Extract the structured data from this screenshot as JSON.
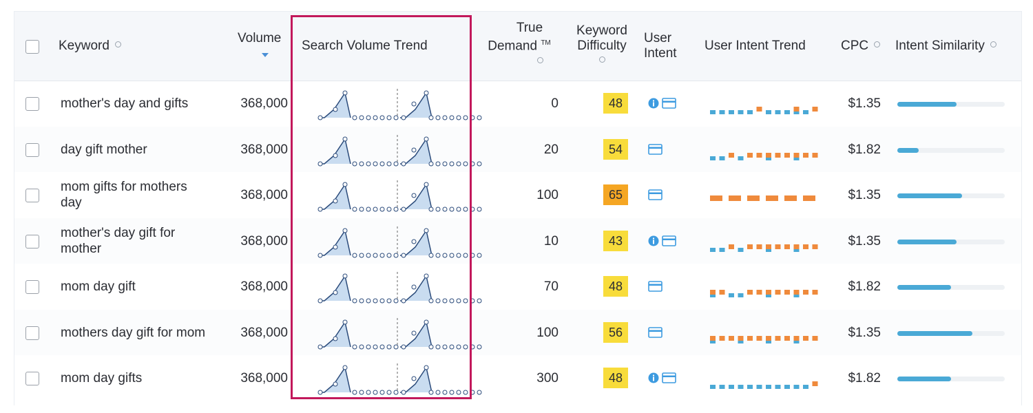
{
  "header": {
    "keyword": "Keyword",
    "volume": "Volume",
    "search_volume_trend": "Search Volume Trend",
    "true_demand_line1": "True",
    "true_demand_line2": "Demand",
    "true_demand_tm": "TM",
    "keyword_difficulty_line1": "Keyword",
    "keyword_difficulty_line2": "Difficulty",
    "user_intent_line1": "User",
    "user_intent_line2": "Intent",
    "user_intent_trend": "User Intent Trend",
    "cpc": "CPC",
    "intent_similarity": "Intent Similarity"
  },
  "colors": {
    "kd_yellow": "#f8dc3b",
    "kd_orange": "#f5a623",
    "intent_blue": "#4aa9d6",
    "intent_orange": "#ef8a3c",
    "highlight": "#c2185b"
  },
  "rows": [
    {
      "keyword_line1": "mother's day and gifts",
      "keyword_line2": "",
      "volume": "368,000",
      "true_demand": "0",
      "kd": "48",
      "kd_level": "yellow",
      "intents": [
        "info",
        "commercial"
      ],
      "trend": "BBBBBOBBBOBO",
      "cpc": "$1.35",
      "similarity": 0.55
    },
    {
      "keyword_line1": "day gift mother",
      "keyword_line2": "",
      "volume": "368,000",
      "true_demand": "20",
      "kd": "54",
      "kd_level": "yellow",
      "intents": [
        "commercial"
      ],
      "trend": "BBOBOOOOOOOO",
      "cpc": "$1.82",
      "similarity": 0.2
    },
    {
      "keyword_line1": "mom gifts for mothers",
      "keyword_line2": "day",
      "volume": "368,000",
      "true_demand": "100",
      "kd": "65",
      "kd_level": "orange",
      "intents": [
        "commercial"
      ],
      "trend": "FLAT",
      "cpc": "$1.35",
      "similarity": 0.6
    },
    {
      "keyword_line1": "mother's day gift for",
      "keyword_line2": "mother",
      "volume": "368,000",
      "true_demand": "10",
      "kd": "43",
      "kd_level": "yellow",
      "intents": [
        "info",
        "commercial"
      ],
      "trend": "BBOBOOOOOOOO",
      "cpc": "$1.35",
      "similarity": 0.55
    },
    {
      "keyword_line1": "mom day gift",
      "keyword_line2": "",
      "volume": "368,000",
      "true_demand": "70",
      "kd": "48",
      "kd_level": "yellow",
      "intents": [
        "commercial"
      ],
      "trend": "OOBBOOOOOOOO",
      "cpc": "$1.82",
      "similarity": 0.5
    },
    {
      "keyword_line1": "mothers day gift for mom",
      "keyword_line2": "",
      "volume": "368,000",
      "true_demand": "100",
      "kd": "56",
      "kd_level": "yellow",
      "intents": [
        "commercial"
      ],
      "trend": "OOOOOOOOOOOO",
      "cpc": "$1.35",
      "similarity": 0.7
    },
    {
      "keyword_line1": "mom day gifts",
      "keyword_line2": "",
      "volume": "368,000",
      "true_demand": "300",
      "kd": "48",
      "kd_level": "yellow",
      "intents": [
        "info",
        "commercial"
      ],
      "trend": "BBBBBBBBBBBO",
      "cpc": "$1.82",
      "similarity": 0.5
    }
  ]
}
